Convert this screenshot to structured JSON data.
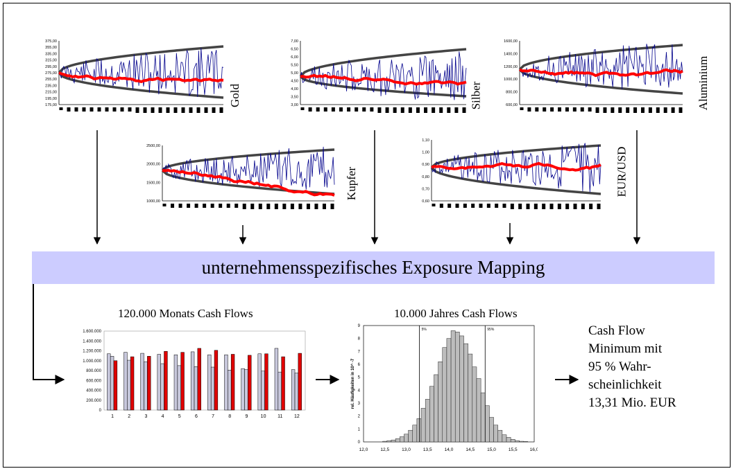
{
  "band_label": "unternehmensspezifisches Exposure Mapping",
  "panels": [
    {
      "id": "gold",
      "label": "Gold",
      "ticks": [
        "375,00",
        "355,00",
        "335,00",
        "315,00",
        "295,00",
        "275,00",
        "255,00",
        "235,00",
        "215,00",
        "195,00",
        "175,00"
      ]
    },
    {
      "id": "silber",
      "label": "Silber",
      "ticks": [
        "7,00",
        "6,50",
        "6,00",
        "5,50",
        "5,00",
        "4,50",
        "4,00",
        "3,50",
        "3,00"
      ]
    },
    {
      "id": "aluminium",
      "label": "Aluminium",
      "ticks": [
        "1600,00",
        "1400,00",
        "1200,00",
        "1000,00",
        "800,00",
        "600,00"
      ]
    },
    {
      "id": "kupfer",
      "label": "Kupfer",
      "ticks": [
        "2500,00",
        "2000,00",
        "1500,00",
        "1000,00"
      ]
    },
    {
      "id": "eurusd",
      "label": "EUR/USD",
      "ticks": [
        "1,10",
        "1,00",
        "0,90",
        "0,80",
        "0,70",
        "0,60"
      ]
    }
  ],
  "monthly": {
    "title": "120.000 Monats Cash Flows",
    "yticks": [
      "1.600.000",
      "1.400.000",
      "1.200.000",
      "1.000.000",
      "800.000",
      "600.000",
      "400.000",
      "200.000",
      "0"
    ],
    "colors": {
      "light": "#c8c8dc",
      "red": "#e00000"
    }
  },
  "yearly": {
    "title": "10.000 Jahres Cash Flows",
    "ylabel": "rel. Häufigkeiten in 10^ -7",
    "yticks": [
      "9",
      "8",
      "7",
      "6",
      "5",
      "4",
      "3",
      "2",
      "1",
      "0"
    ],
    "xticks": [
      "12,0",
      "12,5",
      "13,0",
      "13,5",
      "14,0",
      "14,5",
      "15,0",
      "15,5",
      "16,0"
    ],
    "q5": "5%",
    "q95": "95%"
  },
  "result": {
    "lines": [
      "Cash Flow",
      "Minimum mit",
      "95 % Wahr-",
      "scheinlichkeit",
      "13,31 Mio. EUR"
    ]
  },
  "chart_data": [
    {
      "type": "bar",
      "title": "120.000 Monats Cash Flows",
      "categories": [
        "1",
        "2",
        "3",
        "4",
        "5",
        "6",
        "7",
        "8",
        "9",
        "10",
        "11",
        "12"
      ],
      "ylim": [
        0,
        1600000
      ],
      "series": [
        {
          "values": [
            1140000,
            1170000,
            1150000,
            1130000,
            1120000,
            1180000,
            1120000,
            1120000,
            840000,
            1140000,
            1250000,
            820000
          ]
        },
        {
          "values": [
            1090000,
            1010000,
            980000,
            940000,
            900000,
            880000,
            870000,
            810000,
            820000,
            790000,
            770000,
            750000
          ]
        },
        {
          "values": [
            1000000,
            1080000,
            1090000,
            1190000,
            1170000,
            1250000,
            1210000,
            1130000,
            1110000,
            1140000,
            1080000,
            1150000
          ]
        }
      ]
    },
    {
      "type": "bar",
      "title": "10.000 Jahres Cash Flows",
      "ylabel": "rel. Häufigkeiten in 10^ -7",
      "xlim": [
        12.0,
        16.0
      ],
      "ylim": [
        0,
        9
      ],
      "x": [
        12.5,
        12.6,
        12.7,
        12.8,
        12.9,
        13.0,
        13.1,
        13.2,
        13.3,
        13.4,
        13.5,
        13.6,
        13.7,
        13.8,
        13.9,
        14.0,
        14.1,
        14.2,
        14.3,
        14.4,
        14.5,
        14.6,
        14.7,
        14.8,
        14.9,
        15.0,
        15.1,
        15.2,
        15.3,
        15.4,
        15.5,
        15.6,
        15.7,
        15.8
      ],
      "values": [
        0.05,
        0.1,
        0.15,
        0.25,
        0.4,
        0.6,
        0.9,
        1.3,
        1.8,
        2.6,
        3.3,
        4.3,
        5.2,
        6.2,
        7.3,
        8.0,
        8.6,
        8.5,
        8.2,
        7.6,
        6.8,
        5.8,
        4.9,
        3.8,
        2.8,
        1.9,
        1.3,
        0.9,
        0.55,
        0.35,
        0.2,
        0.1,
        0.05,
        0.03
      ]
    }
  ]
}
